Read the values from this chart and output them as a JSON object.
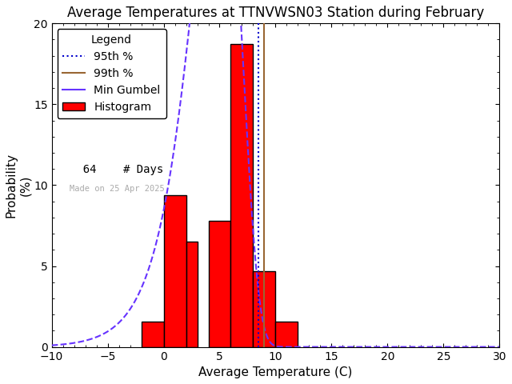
{
  "title": "Average Temperatures at TTNVWSN03 Station during February",
  "xlabel": "Average Temperature (C)",
  "ylabel": "Probability\n(%)",
  "xlim": [
    -10,
    30
  ],
  "ylim": [
    0,
    20
  ],
  "yticks": [
    0,
    5,
    10,
    15,
    20
  ],
  "xticks": [
    -10,
    -5,
    0,
    5,
    10,
    15,
    20,
    25,
    30
  ],
  "bar_left_edges": [
    -2,
    0,
    2,
    3,
    4,
    6,
    8,
    10
  ],
  "bar_widths": [
    2,
    2,
    1,
    1,
    2,
    2,
    2,
    2
  ],
  "bar_heights": [
    1.5625,
    9.375,
    6.5,
    0.0,
    7.8125,
    18.75,
    4.6875,
    1.5625
  ],
  "bar_color": "#ff0000",
  "bar_edgecolor": "#000000",
  "gumbel_mu": 5.0,
  "gumbel_beta": 2.2,
  "gumbel_scale": 100,
  "gumbel_color": "#6633ff",
  "gumbel_linestyle": "--",
  "p95_x": 8.5,
  "p95_color": "#0000cc",
  "p95_linestyle": ":",
  "p99_x": 9.0,
  "p99_color": "#996633",
  "p99_linestyle": "-",
  "watermark": "Made on 25 Apr 2025",
  "n_days": 64,
  "background_color": "#ffffff",
  "title_fontsize": 12,
  "axis_fontsize": 11,
  "legend_fontsize": 10,
  "tick_fontsize": 10
}
